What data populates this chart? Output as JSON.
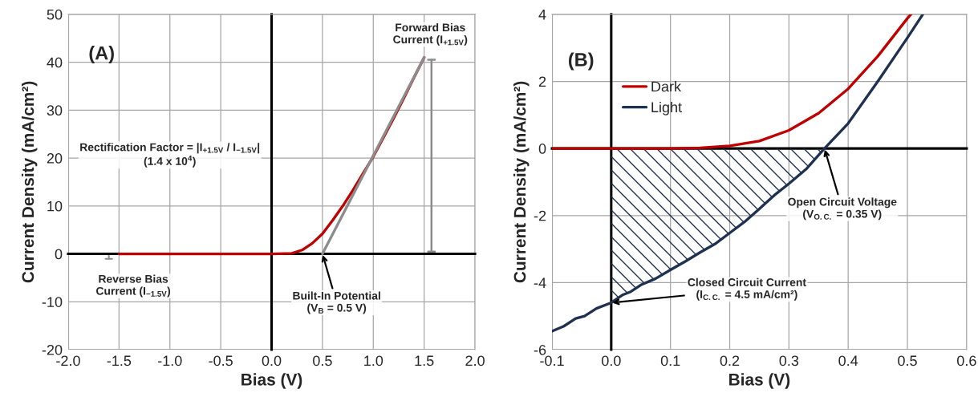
{
  "chart_data": [
    {
      "type": "line",
      "xlabel": "Bias (V)",
      "ylabel": "Current Density (mA/cm²)",
      "xlim": [
        -2,
        2
      ],
      "ylim": [
        -20,
        50
      ],
      "xticks": [
        {
          "value": -2,
          "label": "-2.0"
        },
        -1.5,
        {
          "value": -1,
          "label": "-1.0"
        },
        -0.5,
        {
          "value": 0,
          "label": "0.0"
        },
        0.5,
        {
          "value": 1,
          "label": "1.0"
        },
        1.5,
        {
          "value": 2,
          "label": "2.0"
        }
      ],
      "yticks": [
        -20,
        -10,
        0,
        10,
        20,
        30,
        40,
        50
      ],
      "grid": true,
      "legend": false,
      "marker": "none",
      "line_style": "solid",
      "series": [
        {
          "color": "#c00000",
          "x": [
            -1.5,
            -1.0,
            -0.5,
            0,
            0.2,
            0.3,
            0.4,
            0.5,
            0.6,
            0.7,
            0.8,
            0.9,
            1.0,
            1.1,
            1.2,
            1.3,
            1.4,
            1.5
          ],
          "values": [
            0,
            0,
            0,
            0,
            0.1,
            0.8,
            2.2,
            4.2,
            7,
            10,
            13.3,
            16.8,
            20.3,
            24.3,
            28.3,
            32.5,
            36.8,
            41
          ]
        },
        {
          "color": "#8c8c8c",
          "x": [
            0.5,
            1.5
          ],
          "values": [
            0,
            41
          ]
        }
      ],
      "annotations": [
        "(A)",
        {
          "text": "Forward Bias\nCurrent (I$_{+1.5V}$)",
          "x": 1.5,
          "y": 41
        },
        "Rectification Factor = |I$_{+1.5V}$ / I$_{−1.5V}$|\n(1.4 x 10$^{4}$)",
        "Reverse Bias\nCurrent (I$_{−1.5V}$)",
        {
          "text": "Built-In Potential\n(V$_{B}$ = 0.5 V)",
          "x": 0.5,
          "y": 0
        }
      ]
    },
    {
      "type": "line",
      "xlabel": "Bias (V)",
      "ylabel": "Current Density (mA/cm²)",
      "xlim": [
        -0.1,
        0.6
      ],
      "ylim": [
        -6,
        4
      ],
      "xticks": [
        -0.1,
        {
          "value": 0,
          "label": "0.0"
        },
        0.1,
        0.2,
        0.3,
        0.4,
        0.5,
        0.6
      ],
      "yticks": [
        -6,
        -4,
        -2,
        0,
        2,
        4
      ],
      "grid": true,
      "legend": "top left",
      "marker": "none",
      "line_style": "solid",
      "series": [
        {
          "name": "Dark",
          "color": "#c00000",
          "x": [
            -0.1,
            0,
            0.1,
            0.15,
            0.2,
            0.25,
            0.3,
            0.35,
            0.4,
            0.45,
            0.5,
            0.506
          ],
          "values": [
            0,
            0,
            0,
            0.02,
            0.08,
            0.22,
            0.54,
            1.05,
            1.78,
            2.75,
            3.88,
            4.0
          ]
        },
        {
          "name": "Light",
          "color": "#1f3150",
          "x": [
            -0.1,
            -0.08,
            -0.06,
            -0.045,
            -0.025,
            0,
            0.02,
            0.033,
            0.05,
            0.075,
            0.1,
            0.125,
            0.15,
            0.175,
            0.2,
            0.225,
            0.25,
            0.275,
            0.3,
            0.33,
            0.36,
            0.4,
            0.45,
            0.5,
            0.526
          ],
          "values": [
            -5.45,
            -5.3,
            -5.07,
            -5.0,
            -4.77,
            -4.6,
            -4.36,
            -4.27,
            -4.07,
            -3.88,
            -3.62,
            -3.37,
            -3.1,
            -2.85,
            -2.52,
            -2.19,
            -1.8,
            -1.4,
            -1.05,
            -0.6,
            0,
            0.75,
            2.0,
            3.3,
            4.0
          ]
        },
        {
          "type": "area",
          "color": "#1f3150",
          "x": [
            0,
            0.05,
            0.1,
            0.15,
            0.2,
            0.25,
            0.3,
            0.33,
            0.36
          ],
          "values": [
            -4.6,
            -4.07,
            -3.62,
            -3.1,
            -2.52,
            -1.8,
            -1.05,
            -0.6,
            0
          ]
        }
      ],
      "annotations": [
        "(B)",
        {
          "text": "Open Circuit Voltage\n(V$_{O.C.}$ = 0.35 V)",
          "x": 0.36,
          "y": 0
        },
        {
          "text": "Closed Circuit Current\n(I$_{C.C.}$ = 4.5 mA/cm²)",
          "x": 0,
          "y": -4.6
        }
      ]
    }
  ]
}
